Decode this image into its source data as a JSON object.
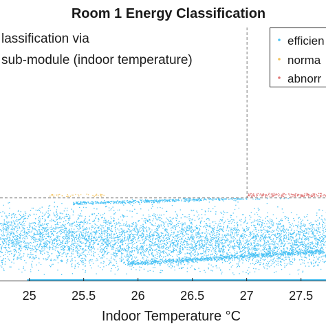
{
  "chart_data": {
    "type": "scatter",
    "title": "Room 1 Energy Classification",
    "xlabel": "Indoor Temperature °C",
    "annotation": [
      "lassification via",
      "sub-module (indoor temperature)"
    ],
    "xlim": [
      24.73,
      27.73
    ],
    "xticks": [
      25,
      25.5,
      26,
      26.5,
      27,
      27.5
    ],
    "xtick_labels": [
      "25",
      "25.5",
      "26",
      "26.5",
      "27",
      "27.5"
    ],
    "ylim": [
      0,
      1
    ],
    "threshold_x": 27.0,
    "threshold_y": 0.296,
    "legend_position": "top-right",
    "series": [
      {
        "name": "efficien",
        "color": "#4cc3f5",
        "region": "below threshold"
      },
      {
        "name": "norma",
        "color": "#f3c25c",
        "region": "on threshold, x < 27"
      },
      {
        "name": "abnorr",
        "color": "#e07878",
        "region": "on threshold, x > 27"
      }
    ]
  }
}
